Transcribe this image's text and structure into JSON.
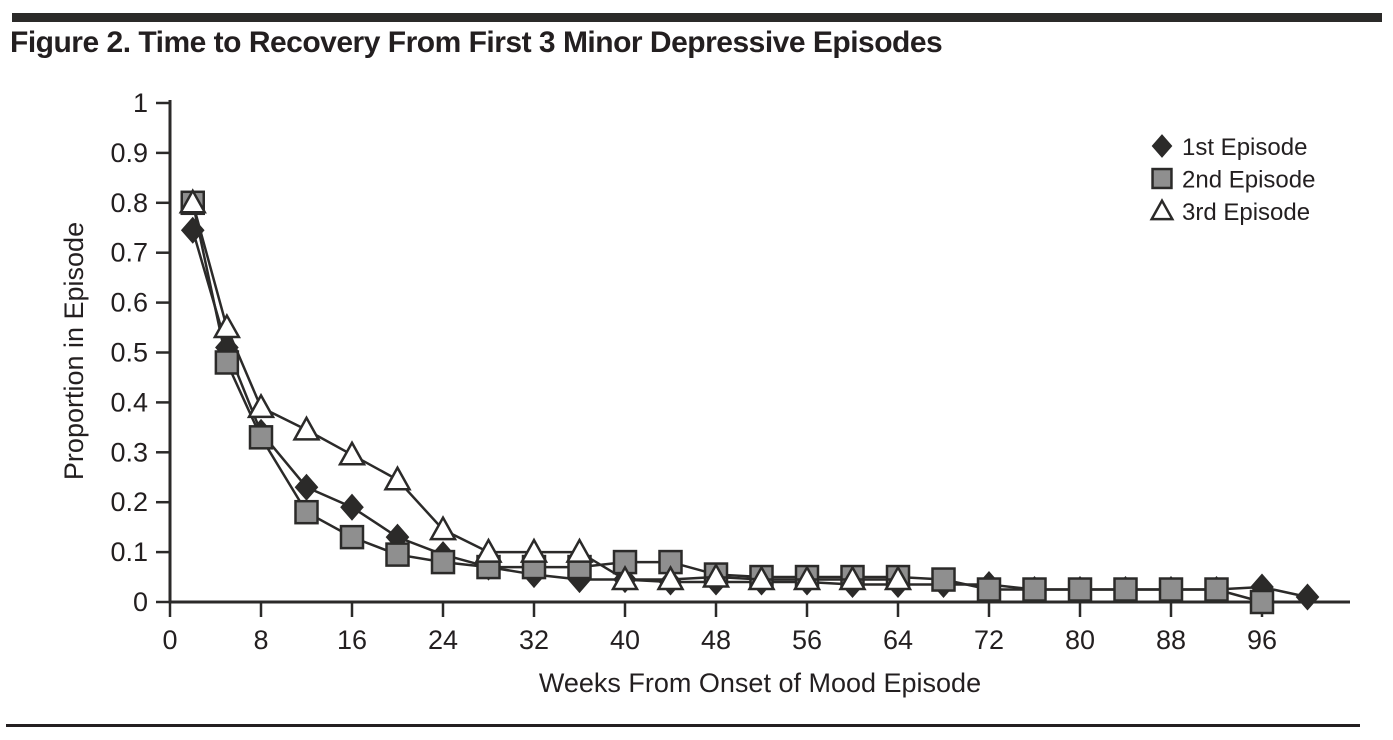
{
  "figure": {
    "title": "Figure 2. Time to Recovery From First 3 Minor Depressive Episodes"
  },
  "colors": {
    "ink": "#2b2a29",
    "text": "#231f20",
    "square_fill": "#8f8f8f",
    "triangle_fill": "#ffffff",
    "background": "#ffffff"
  },
  "chart_data": {
    "type": "line",
    "title": "Time to Recovery From First 3 Minor Depressive Episodes",
    "xlabel": "Weeks From Onset of Mood Episode",
    "ylabel": "Proportion in Episode",
    "xlim": [
      0,
      104
    ],
    "ylim": [
      0,
      1
    ],
    "x_ticks": [
      0,
      8,
      16,
      24,
      32,
      40,
      48,
      56,
      64,
      72,
      80,
      88,
      96
    ],
    "y_ticks": [
      0,
      0.1,
      0.2,
      0.3,
      0.4,
      0.5,
      0.6,
      0.7,
      0.8,
      0.9,
      1
    ],
    "grid": false,
    "legend_position": "top-right",
    "legend": [
      "1st Episode",
      "2nd Episode",
      "3rd Episode"
    ],
    "series": [
      {
        "name": "1st Episode",
        "marker": "diamond",
        "x": [
          2,
          5,
          8,
          12,
          16,
          20,
          24,
          28,
          32,
          36,
          40,
          44,
          48,
          52,
          56,
          60,
          64,
          68,
          72,
          76,
          80,
          84,
          88,
          92,
          96,
          100
        ],
        "y": [
          0.745,
          0.51,
          0.34,
          0.23,
          0.19,
          0.13,
          0.095,
          0.07,
          0.055,
          0.045,
          0.045,
          0.04,
          0.04,
          0.04,
          0.04,
          0.035,
          0.035,
          0.035,
          0.035,
          0.025,
          0.025,
          0.025,
          0.025,
          0.025,
          0.03,
          0.01
        ]
      },
      {
        "name": "2nd Episode",
        "marker": "square",
        "x": [
          2,
          5,
          8,
          12,
          16,
          20,
          24,
          28,
          32,
          36,
          40,
          44,
          48,
          52,
          56,
          60,
          64,
          68,
          72,
          76,
          80,
          84,
          88,
          92,
          96
        ],
        "y": [
          0.8,
          0.48,
          0.33,
          0.18,
          0.13,
          0.095,
          0.08,
          0.07,
          0.07,
          0.07,
          0.08,
          0.08,
          0.055,
          0.05,
          0.05,
          0.05,
          0.05,
          0.045,
          0.025,
          0.025,
          0.025,
          0.025,
          0.025,
          0.025,
          0.0
        ]
      },
      {
        "name": "3rd Episode",
        "marker": "triangle",
        "x": [
          2,
          5,
          8,
          12,
          16,
          20,
          24,
          28,
          32,
          36,
          40,
          44,
          48,
          52,
          56,
          60,
          64
        ],
        "y": [
          0.8,
          0.55,
          0.39,
          0.345,
          0.295,
          0.245,
          0.145,
          0.1,
          0.1,
          0.1,
          0.045,
          0.045,
          0.05,
          0.045,
          0.045,
          0.045,
          0.045
        ]
      }
    ]
  }
}
